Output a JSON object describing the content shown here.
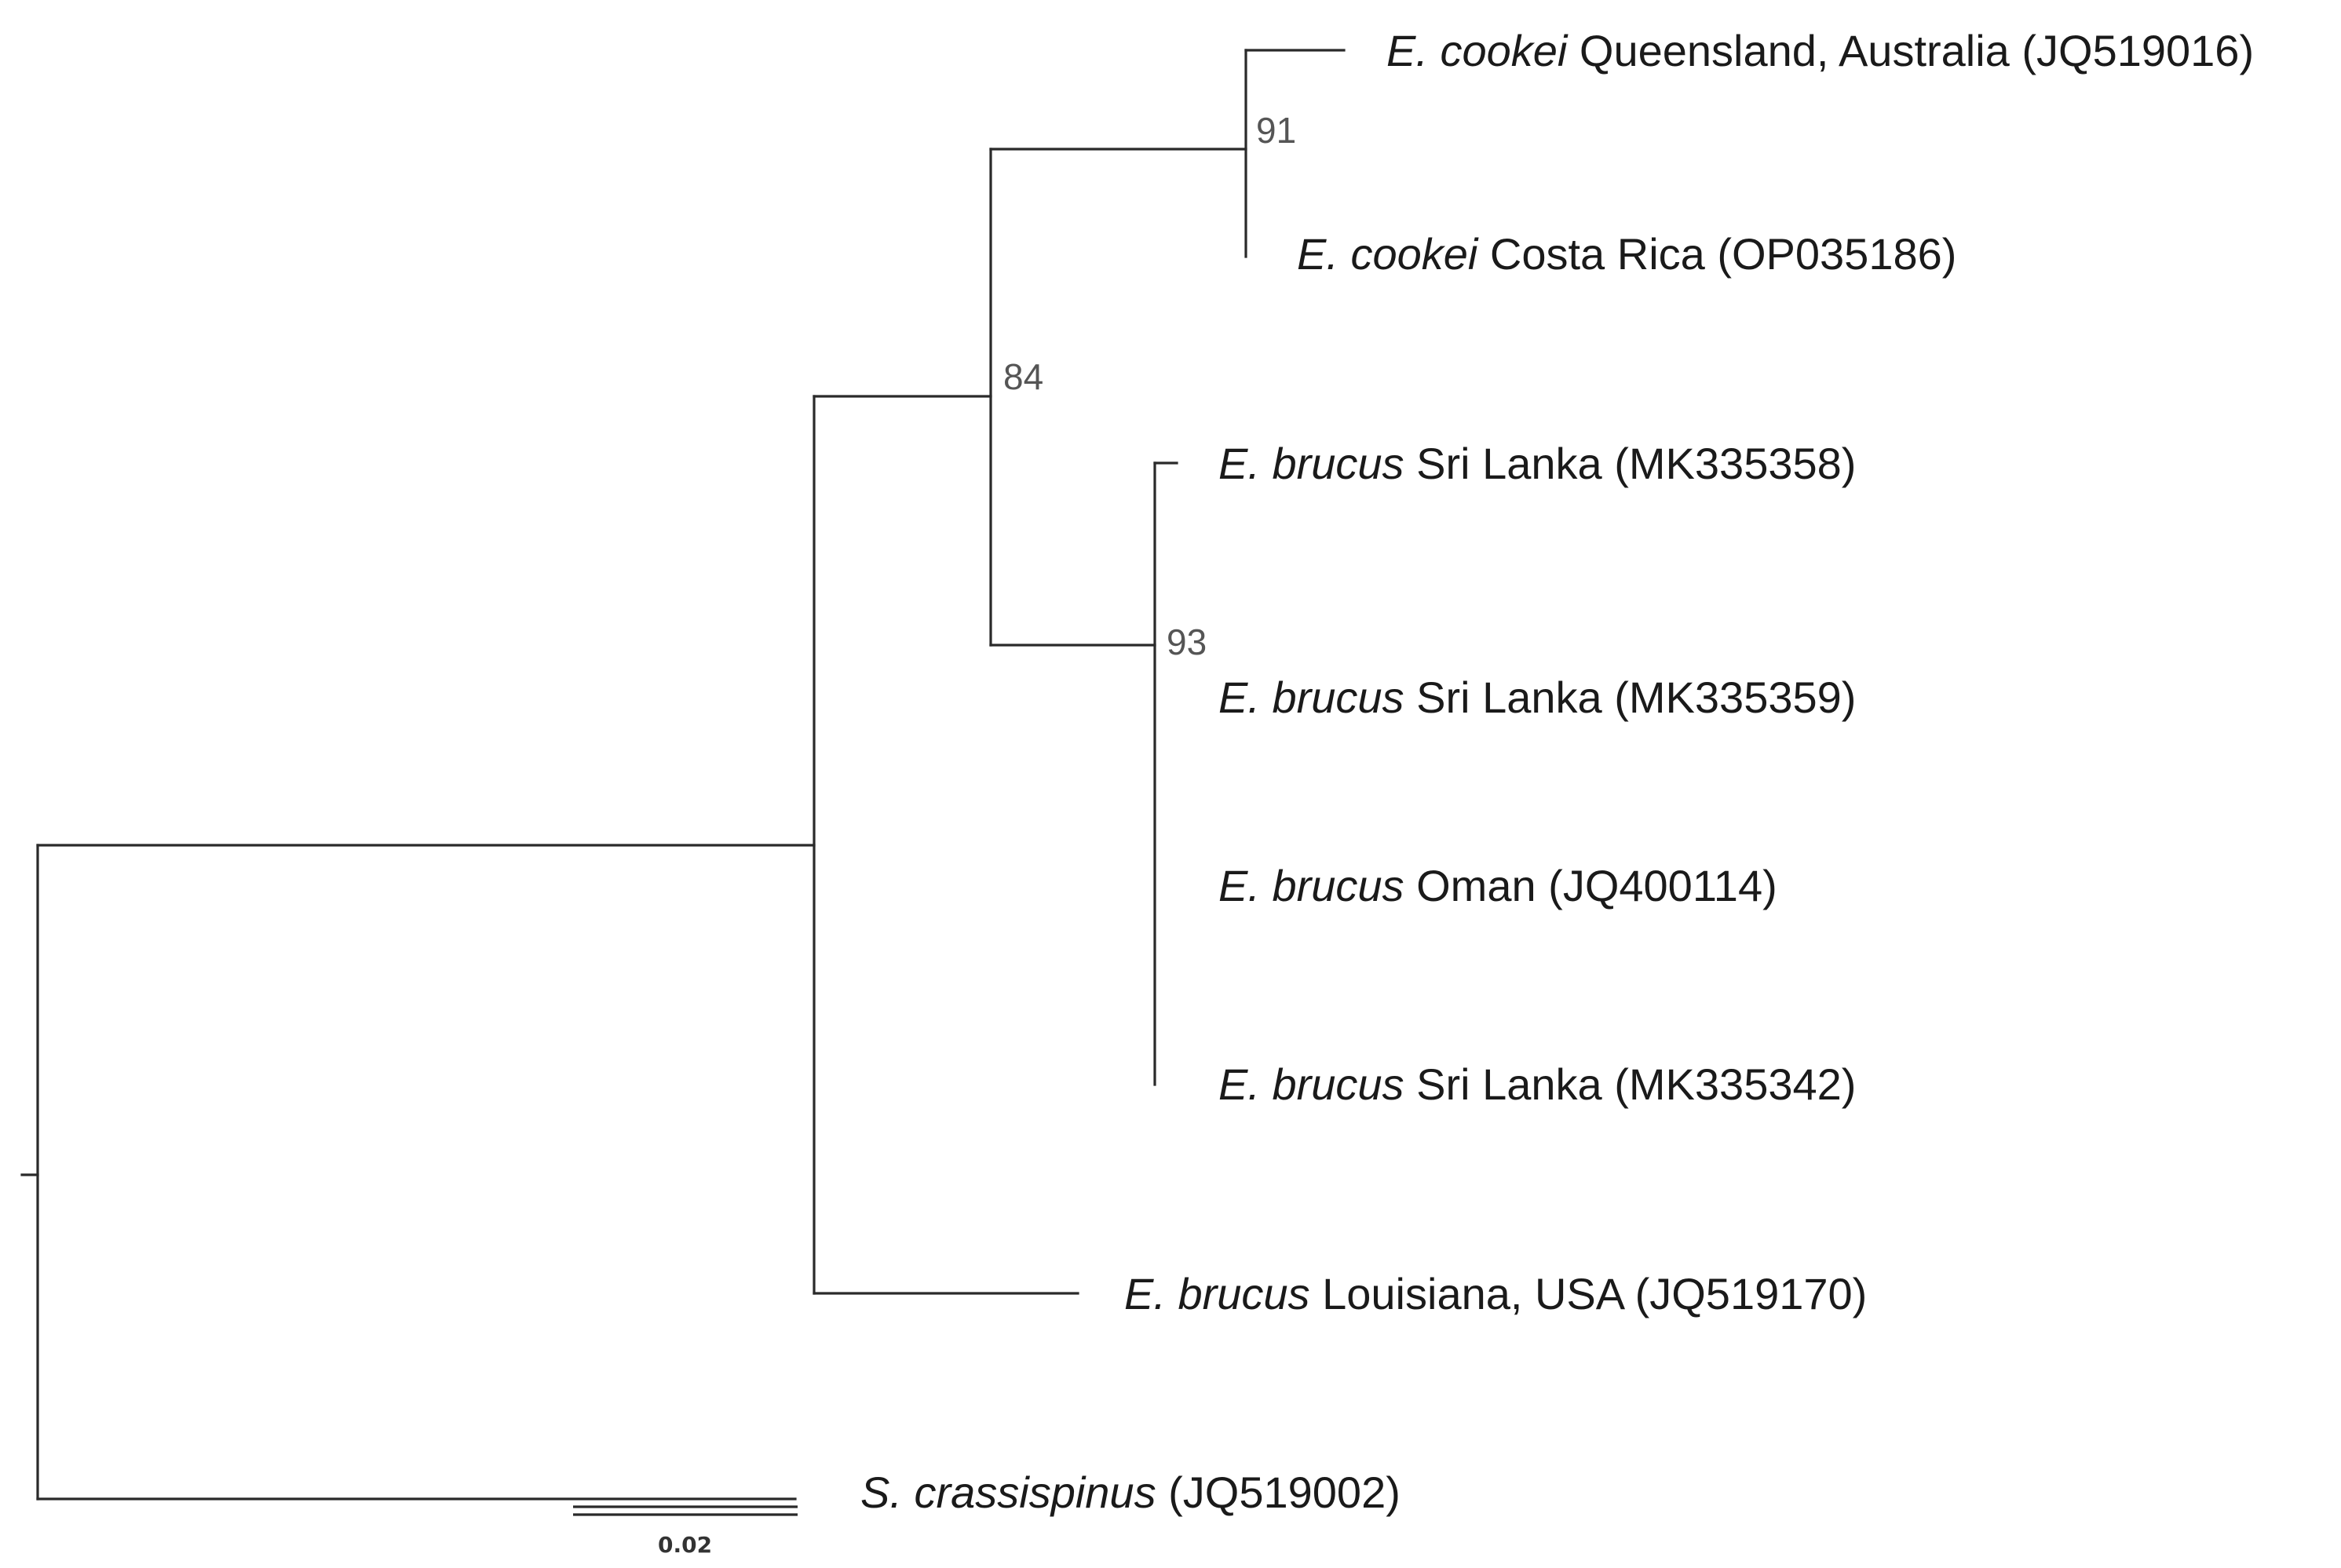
{
  "tree": {
    "taxa": [
      {
        "id": "cookei_qld",
        "species": "E. cookei",
        "locality": " Queensland, Australia (JQ519016)"
      },
      {
        "id": "cookei_cr",
        "species": "E. cookei",
        "locality": " Costa Rica (OP035186)"
      },
      {
        "id": "brucus_sl1",
        "species": "E. brucus",
        "locality": " Sri Lanka (MK335358)"
      },
      {
        "id": "brucus_sl2",
        "species": "E. brucus",
        "locality": " Sri Lanka (MK335359)"
      },
      {
        "id": "brucus_oman",
        "species": "E. brucus",
        "locality": " Oman (JQ400114)"
      },
      {
        "id": "brucus_sl3",
        "species": "E. brucus",
        "locality": " Sri Lanka (MK335342)"
      },
      {
        "id": "brucus_la",
        "species": "E. brucus",
        "locality": " Louisiana, USA (JQ519170)"
      },
      {
        "id": "crassispinus",
        "species": "S. crassispinus",
        "locality": " (JQ519002)"
      }
    ],
    "support_values": {
      "cookei_clade": "91",
      "cookei_brucus_clade": "84",
      "brucus_clade": "93"
    },
    "scale_bar": {
      "value": 0.02,
      "label": "0.02"
    }
  }
}
